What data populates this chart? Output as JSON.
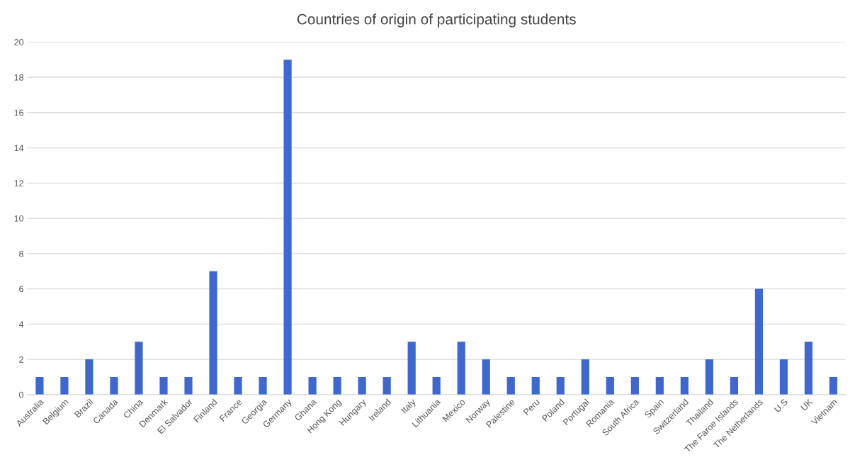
{
  "chart_data": {
    "type": "bar",
    "title": "Countries of origin of participating students",
    "categories": [
      "Australia",
      "Belgium",
      "Brazil",
      "Canada",
      "China",
      "Denmark",
      "El Salvador",
      "Finland",
      "France",
      "Georgia",
      "Germany",
      "Ghana",
      "Hong Kong",
      "Hungary",
      "Ireland",
      "Italy",
      "Lithuania",
      "Mexico",
      "Norway",
      "Palestine",
      "Peru",
      "Poland",
      "Portugal",
      "Romania",
      "South Africa",
      "Spain",
      "Switzerland",
      "Thailand",
      "The Faroe Islands",
      "The Netherlands",
      "U.S",
      "UK",
      "Vietnam"
    ],
    "values": [
      1,
      1,
      2,
      1,
      3,
      1,
      1,
      7,
      1,
      1,
      19,
      1,
      1,
      1,
      1,
      3,
      1,
      3,
      2,
      1,
      1,
      1,
      2,
      1,
      1,
      1,
      1,
      2,
      1,
      6,
      2,
      3,
      1
    ],
    "color": "#3e67d0",
    "ylim": [
      0,
      20
    ],
    "yticks": [
      0,
      2,
      4,
      6,
      8,
      10,
      12,
      14,
      16,
      18,
      20
    ],
    "grid": "y",
    "legend": false
  }
}
